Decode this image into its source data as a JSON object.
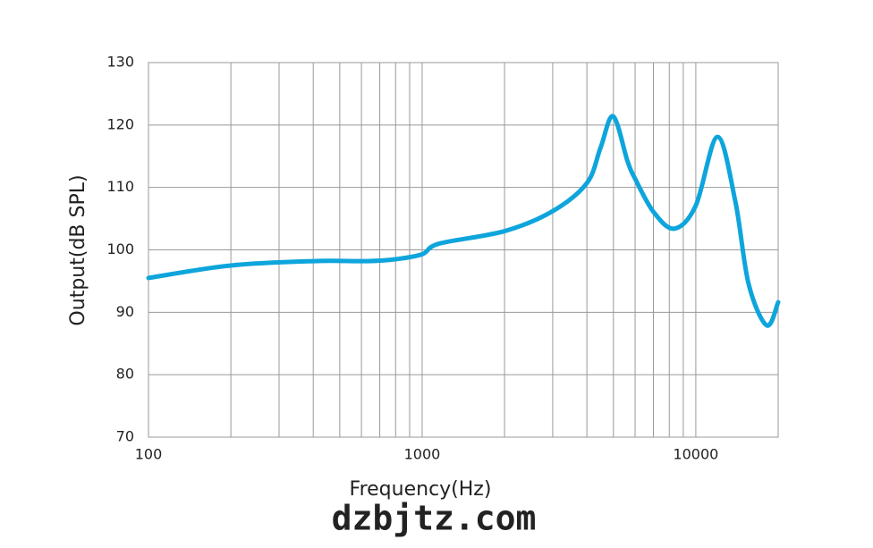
{
  "chart_data": {
    "type": "line",
    "xlabel": "Frequency(Hz)",
    "ylabel": "Output(dB SPL)",
    "watermark": "dzbjtz.com",
    "log_x": true,
    "grid": true,
    "xlim": [
      100,
      20000
    ],
    "ylim": [
      70,
      130
    ],
    "xticks": [
      100,
      1000,
      10000
    ],
    "minor_xticks": [
      200,
      300,
      400,
      500,
      600,
      700,
      800,
      900,
      2000,
      3000,
      4000,
      5000,
      6000,
      7000,
      8000,
      9000
    ],
    "yticks": [
      70,
      80,
      90,
      100,
      110,
      120,
      130
    ],
    "x": [
      100,
      200,
      400,
      630,
      800,
      1000,
      1155,
      2000,
      3000,
      4000,
      4490,
      4990,
      5630,
      6000,
      7000,
      8340,
      10000,
      11990,
      13940,
      15600,
      18160,
      20000
    ],
    "series": [
      {
        "color": "#0ea5dc",
        "values": [
          95.5,
          97.5,
          98.2,
          98.2,
          98.5,
          99.3,
          101,
          103,
          106.2,
          110.7,
          116.4,
          121.4,
          114.2,
          111.4,
          106.1,
          103.4,
          107.1,
          118.1,
          107.8,
          94.5,
          87.9,
          91.6
        ]
      }
    ]
  }
}
